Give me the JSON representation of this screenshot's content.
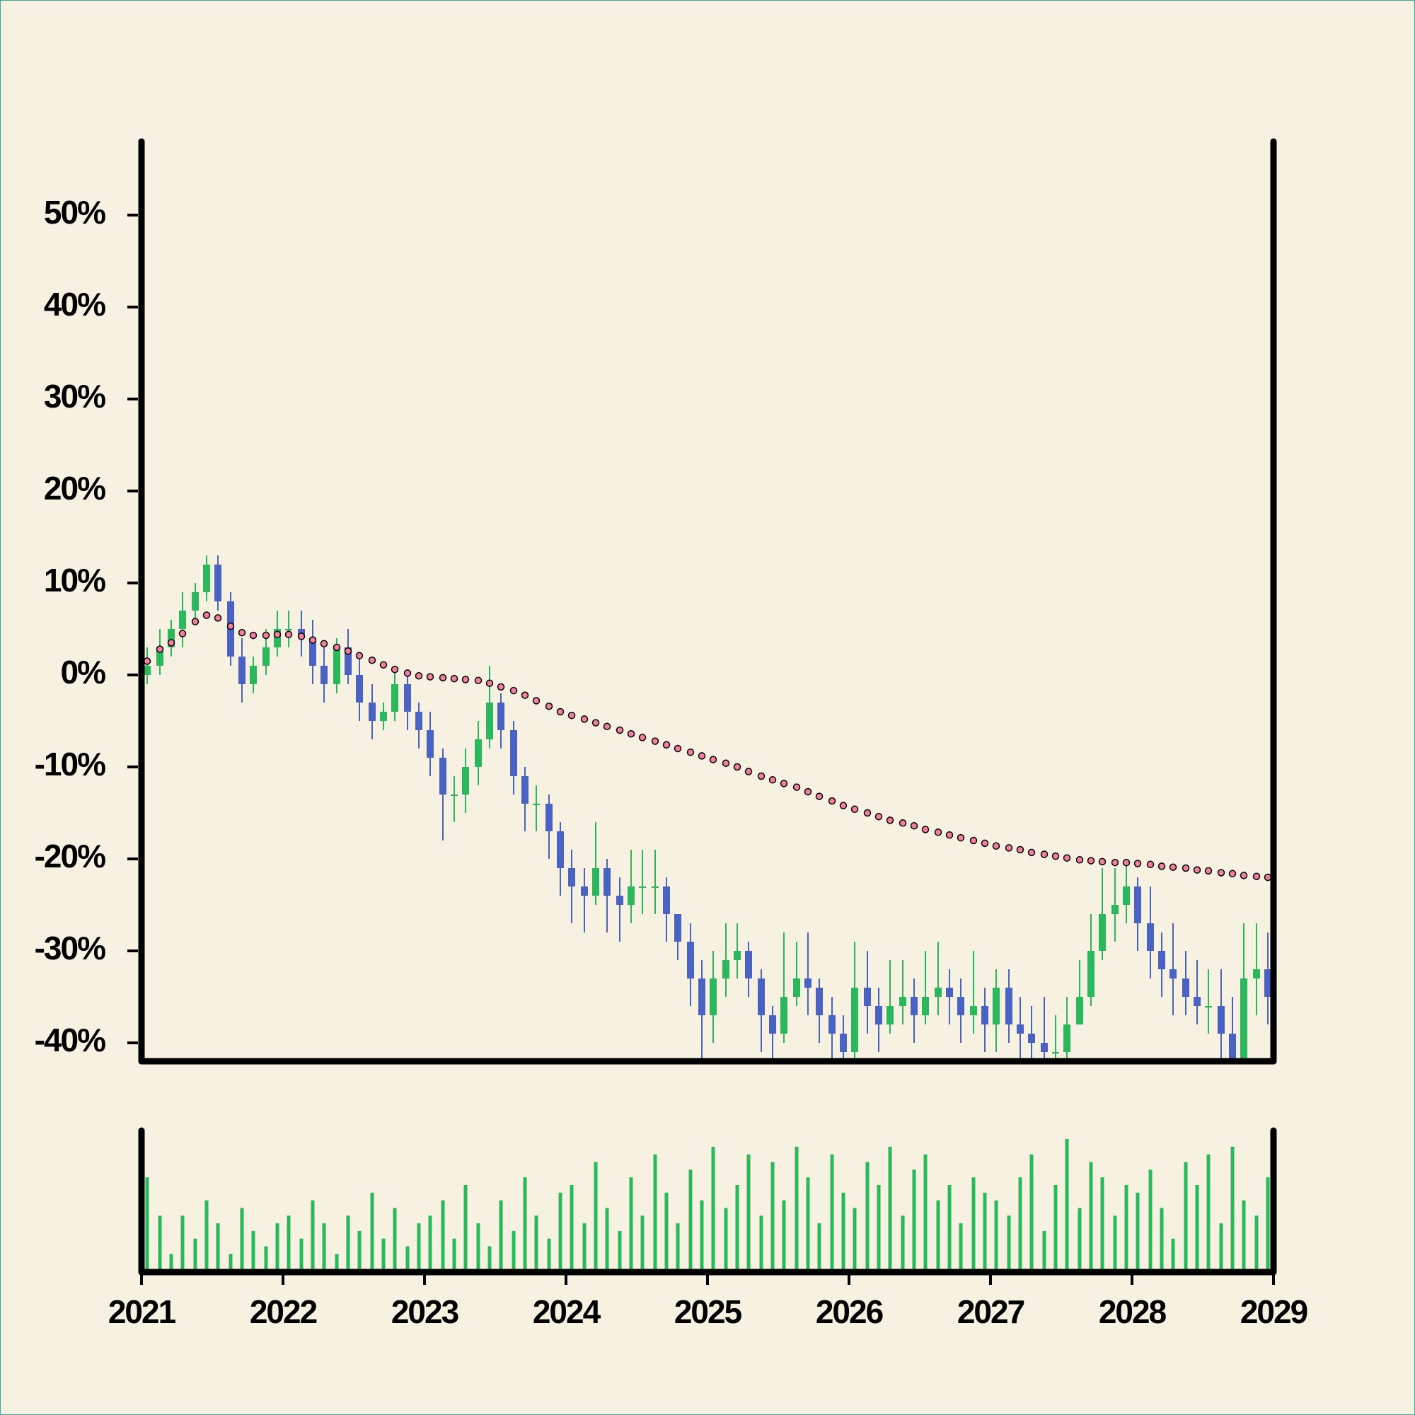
{
  "chart_data": {
    "type": "candlestick",
    "x": [
      2021.04,
      2021.13,
      2021.21,
      2021.29,
      2021.38,
      2021.46,
      2021.54,
      2021.63,
      2021.71,
      2021.79,
      2021.88,
      2021.96,
      2022.04,
      2022.13,
      2022.21,
      2022.29,
      2022.38,
      2022.46,
      2022.54,
      2022.63,
      2022.71,
      2022.79,
      2022.88,
      2022.96,
      2023.04,
      2023.13,
      2023.21,
      2023.29,
      2023.38,
      2023.46,
      2023.54,
      2023.63,
      2023.71,
      2023.79,
      2023.88,
      2023.96,
      2024.04,
      2024.13,
      2024.21,
      2024.29,
      2024.38,
      2024.46,
      2024.54,
      2024.63,
      2024.71,
      2024.79,
      2024.88,
      2024.96,
      2025.04,
      2025.13,
      2025.21,
      2025.29,
      2025.38,
      2025.46,
      2025.54,
      2025.63,
      2025.71,
      2025.79,
      2025.88,
      2025.96,
      2026.04,
      2026.13,
      2026.21,
      2026.29,
      2026.38,
      2026.46,
      2026.54,
      2026.63,
      2026.71,
      2026.79,
      2026.88,
      2026.96,
      2027.04,
      2027.13,
      2027.21,
      2027.29,
      2027.38,
      2027.46,
      2027.54,
      2027.63,
      2027.71,
      2027.79,
      2027.88,
      2027.96,
      2028.04,
      2028.13,
      2028.21,
      2028.29,
      2028.38,
      2028.46,
      2028.54,
      2028.63,
      2028.71,
      2028.79,
      2028.88,
      2028.96
    ],
    "open": [
      0,
      1,
      3,
      5,
      7,
      9,
      12,
      8,
      2,
      -1,
      1,
      3,
      5,
      5,
      4,
      1,
      -1,
      3,
      0,
      -3,
      -5,
      -4,
      -1,
      -4,
      -6,
      -9,
      -13,
      -13,
      -10,
      -7,
      -3,
      -6,
      -11,
      -14,
      -14,
      -17,
      -21,
      -23,
      -24,
      -21,
      -24,
      -25,
      -23,
      -23,
      -23,
      -26,
      -29,
      -33,
      -37,
      -33,
      -31,
      -30,
      -33,
      -37,
      -39,
      -35,
      -33,
      -34,
      -37,
      -39,
      -41,
      -34,
      -36,
      -38,
      -36,
      -35,
      -37,
      -35,
      -34,
      -35,
      -37,
      -36,
      -38,
      -34,
      -38,
      -39,
      -40,
      -41,
      -41,
      -38,
      -35,
      -30,
      -26,
      -25,
      -23,
      -27,
      -30,
      -32,
      -33,
      -35,
      -36,
      -36,
      -39,
      -42,
      -33,
      -32
    ],
    "high": [
      3,
      5,
      6,
      9,
      10,
      13,
      13,
      9,
      4,
      2,
      5,
      7,
      7,
      7,
      6,
      3,
      4,
      5,
      2,
      -1,
      -3,
      1,
      0,
      -3,
      -4,
      -8,
      -11,
      -8,
      -5,
      1,
      -2,
      -5,
      -10,
      -12,
      -13,
      -16,
      -19,
      -21,
      -16,
      -20,
      -22,
      -19,
      -19,
      -19,
      -22,
      -26,
      -27,
      -31,
      -30,
      -27,
      -27,
      -29,
      -32,
      -36,
      -28,
      -29,
      -28,
      -33,
      -35,
      -37,
      -29,
      -30,
      -34,
      -31,
      -31,
      -33,
      -30,
      -29,
      -32,
      -33,
      -30,
      -34,
      -32,
      -32,
      -35,
      -36,
      -35,
      -37,
      -35,
      -31,
      -26,
      -21,
      -21,
      -20,
      -22,
      -23,
      -28,
      -27,
      -30,
      -31,
      -32,
      -32,
      -35,
      -27,
      -27,
      -28
    ],
    "low": [
      -1,
      0,
      2,
      3,
      6,
      8,
      7,
      1,
      -3,
      -2,
      0,
      2,
      3,
      2,
      -1,
      -3,
      -2,
      -1,
      -5,
      -7,
      -6,
      -5,
      -6,
      -8,
      -11,
      -18,
      -16,
      -15,
      -12,
      -8,
      -8,
      -13,
      -17,
      -17,
      -20,
      -24,
      -27,
      -28,
      -25,
      -28,
      -29,
      -27,
      -26,
      -26,
      -29,
      -31,
      -36,
      -42,
      -40,
      -35,
      -33,
      -35,
      -41,
      -42,
      -40,
      -36,
      -37,
      -40,
      -42,
      -43,
      -43,
      -39,
      -41,
      -39,
      -38,
      -40,
      -38,
      -37,
      -38,
      -40,
      -39,
      -41,
      -41,
      -40,
      -42,
      -43,
      -43,
      -43,
      -42,
      -38,
      -36,
      -31,
      -29,
      -27,
      -30,
      -33,
      -35,
      -37,
      -37,
      -38,
      -39,
      -42,
      -44,
      -43,
      -37,
      -38
    ],
    "close": [
      1,
      3,
      5,
      7,
      9,
      12,
      8,
      2,
      -1,
      1,
      3,
      5,
      5,
      4,
      1,
      -1,
      3,
      0,
      -3,
      -5,
      -4,
      -1,
      -4,
      -6,
      -9,
      -13,
      -13,
      -10,
      -7,
      -3,
      -6,
      -11,
      -14,
      -14,
      -17,
      -21,
      -23,
      -24,
      -21,
      -24,
      -25,
      -23,
      -23,
      -23,
      -26,
      -29,
      -33,
      -37,
      -33,
      -31,
      -30,
      -33,
      -37,
      -39,
      -35,
      -33,
      -34,
      -37,
      -39,
      -41,
      -34,
      -36,
      -38,
      -36,
      -35,
      -37,
      -35,
      -34,
      -35,
      -37,
      -36,
      -38,
      -34,
      -38,
      -39,
      -40,
      -41,
      -41,
      -38,
      -35,
      -30,
      -26,
      -25,
      -23,
      -27,
      -30,
      -32,
      -33,
      -35,
      -36,
      -36,
      -39,
      -42,
      -33,
      -32,
      -35
    ],
    "up_color": "#2bb85c",
    "down_color": "#4a62c4",
    "ma": {
      "color": "#f07fa0",
      "values": [
        1.5,
        2.8,
        3.5,
        4.5,
        5.8,
        6.5,
        6.2,
        5.3,
        4.6,
        4.3,
        4.3,
        4.4,
        4.4,
        4.2,
        3.8,
        3.4,
        3,
        2.6,
        2.1,
        1.6,
        1.1,
        0.6,
        0.2,
        -0.1,
        -0.2,
        -0.3,
        -0.4,
        -0.5,
        -0.6,
        -0.9,
        -1.3,
        -1.7,
        -2.2,
        -2.8,
        -3.4,
        -4,
        -4.4,
        -4.8,
        -5.2,
        -5.6,
        -6,
        -6.4,
        -6.8,
        -7.2,
        -7.6,
        -8,
        -8.4,
        -8.8,
        -9.2,
        -9.6,
        -10,
        -10.5,
        -11,
        -11.4,
        -11.8,
        -12.2,
        -12.7,
        -13.2,
        -13.7,
        -14.2,
        -14.6,
        -15,
        -15.4,
        -15.8,
        -16.1,
        -16.4,
        -16.8,
        -17.1,
        -17.4,
        -17.7,
        -18,
        -18.3,
        -18.6,
        -18.8,
        -19,
        -19.3,
        -19.5,
        -19.7,
        -19.9,
        -20.1,
        -20.2,
        -20.3,
        -20.4,
        -20.4,
        -20.5,
        -20.6,
        -20.8,
        -20.9,
        -21,
        -21.2,
        -21.3,
        -21.5,
        -21.6,
        -21.8,
        -21.9,
        -22
      ]
    },
    "volume": {
      "color": "#2bb85c",
      "values": [
        60,
        35,
        10,
        35,
        20,
        45,
        30,
        10,
        40,
        25,
        15,
        30,
        35,
        20,
        45,
        30,
        10,
        35,
        25,
        50,
        20,
        40,
        15,
        30,
        35,
        45,
        20,
        55,
        30,
        15,
        45,
        25,
        60,
        35,
        20,
        50,
        55,
        30,
        70,
        40,
        25,
        60,
        35,
        75,
        50,
        30,
        65,
        45,
        80,
        40,
        55,
        75,
        35,
        70,
        45,
        80,
        60,
        30,
        75,
        50,
        40,
        70,
        55,
        80,
        35,
        65,
        75,
        45,
        55,
        30,
        60,
        50,
        45,
        35,
        60,
        75,
        25,
        55,
        85,
        40,
        70,
        60,
        35,
        55,
        50,
        65,
        40,
        20,
        70,
        55,
        75,
        30,
        80,
        45,
        35,
        60
      ]
    },
    "xlim": [
      2021,
      2029
    ],
    "xticks": [
      2021,
      2022,
      2023,
      2024,
      2025,
      2026,
      2027,
      2028,
      2029
    ],
    "ylim": [
      -42,
      58
    ],
    "yticks": [
      {
        "value": -40,
        "label": "-40%"
      },
      {
        "value": -30,
        "label": "-30%"
      },
      {
        "value": -20,
        "label": "-20%"
      },
      {
        "value": -10,
        "label": "-10%"
      },
      {
        "value": 0,
        "label": "0%"
      },
      {
        "value": 10,
        "label": "10%"
      },
      {
        "value": 20,
        "label": "20%"
      },
      {
        "value": 30,
        "label": "30%"
      },
      {
        "value": 40,
        "label": "40%"
      },
      {
        "value": 50,
        "label": "50%"
      }
    ]
  }
}
